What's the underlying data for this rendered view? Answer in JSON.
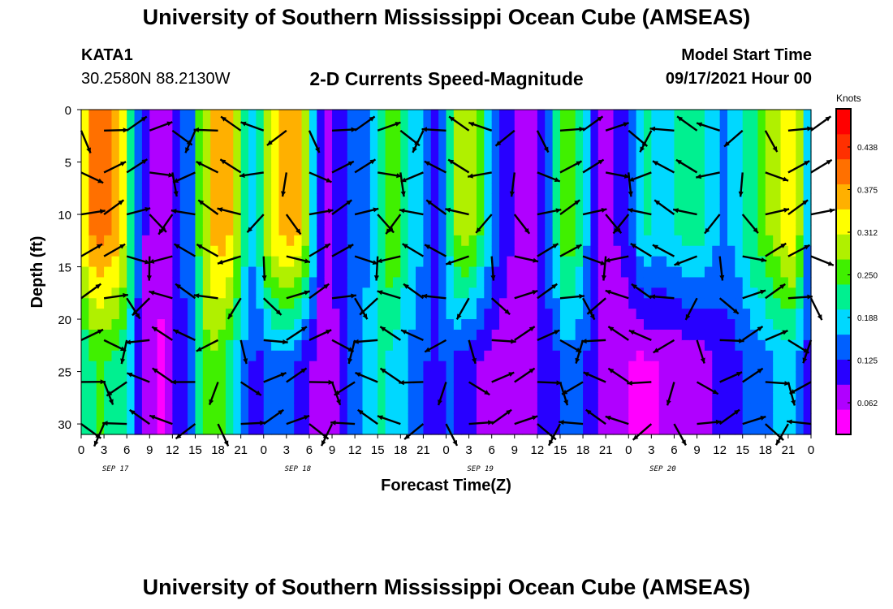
{
  "header": {
    "title": "University of Southern Mississippi Ocean Cube (AMSEAS)",
    "station": "KATA1",
    "coords": "30.2580N  88.2130W",
    "subtitle": "2-D Currents Speed-Magnitude",
    "start_label": "Model Start Time",
    "start_value": "09/17/2021 Hour 00"
  },
  "footer": {
    "title": "University of Southern Mississippi Ocean Cube (AMSEAS)"
  },
  "chart_data": {
    "type": "heatmap",
    "title": "2-D Currents Speed-Magnitude",
    "xlabel": "Forecast Time(Z)",
    "ylabel": "Depth (ft)",
    "x_ticks": [
      "0",
      "3",
      "6",
      "9",
      "12",
      "15",
      "18",
      "21",
      "0",
      "3",
      "6",
      "9",
      "12",
      "15",
      "18",
      "21",
      "0",
      "3",
      "6",
      "9",
      "12",
      "15",
      "18",
      "21",
      "0",
      "3",
      "6",
      "9",
      "12",
      "15",
      "18",
      "21",
      "0"
    ],
    "date_labels": [
      "SEP 17",
      "SEP 18",
      "SEP 19",
      "SEP 20"
    ],
    "x_range_hours": [
      0,
      96
    ],
    "y_ticks": [
      0,
      5,
      10,
      15,
      20,
      25,
      30
    ],
    "ylim": [
      0,
      31
    ],
    "y_inverted": true,
    "colorbar": {
      "units": "Knots",
      "ticks": [
        "0.438",
        "0.375",
        "0.312",
        "0.250",
        "0.188",
        "0.125",
        "0.062"
      ],
      "colors": [
        "#ff00ff",
        "#b000ff",
        "#2800ff",
        "#0060ff",
        "#00d8ff",
        "#00f090",
        "#40f000",
        "#b0f000",
        "#ffff00",
        "#ffb000",
        "#ff7000",
        "#ff3000",
        "#ff0000"
      ]
    },
    "speed_by_hour_depth_bands": [
      {
        "depth_ft": [
          0,
          20
        ],
        "hours": [
          [
            0,
            0.3
          ],
          [
            1,
            0.38
          ],
          [
            3,
            0.4
          ],
          [
            5,
            0.36
          ],
          [
            6,
            0.28
          ],
          [
            7,
            0.16
          ],
          [
            8,
            0.09
          ],
          [
            10,
            0.04
          ],
          [
            12,
            0.06
          ],
          [
            13,
            0.14
          ],
          [
            14,
            0.1
          ],
          [
            15,
            0.2
          ],
          [
            17,
            0.34
          ],
          [
            19,
            0.38
          ],
          [
            21,
            0.26
          ],
          [
            22,
            0.15
          ],
          [
            23,
            0.18
          ],
          [
            25,
            0.33
          ],
          [
            28,
            0.38
          ],
          [
            30,
            0.26
          ],
          [
            31,
            0.12
          ],
          [
            32,
            0.06
          ],
          [
            34,
            0.09
          ],
          [
            35,
            0.14
          ],
          [
            37,
            0.13
          ],
          [
            39,
            0.2
          ],
          [
            41,
            0.28
          ],
          [
            43,
            0.2
          ],
          [
            45,
            0.15
          ],
          [
            47,
            0.1
          ],
          [
            48,
            0.18
          ],
          [
            50,
            0.3
          ],
          [
            52,
            0.26
          ],
          [
            54,
            0.15
          ],
          [
            56,
            0.09
          ],
          [
            58,
            0.06
          ],
          [
            60,
            0.05
          ],
          [
            62,
            0.18
          ],
          [
            64,
            0.27
          ],
          [
            66,
            0.2
          ],
          [
            67,
            0.12
          ],
          [
            69,
            0.06
          ],
          [
            72,
            0.1
          ],
          [
            74,
            0.2
          ],
          [
            76,
            0.17
          ],
          [
            78,
            0.19
          ],
          [
            80,
            0.21
          ],
          [
            82,
            0.2
          ],
          [
            84,
            0.15
          ],
          [
            86,
            0.16
          ],
          [
            88,
            0.22
          ],
          [
            90,
            0.26
          ],
          [
            92,
            0.31
          ],
          [
            94,
            0.34
          ],
          [
            95,
            0.2
          ],
          [
            96,
            0.12
          ]
        ]
      },
      {
        "depth_ft": [
          20,
          31
        ],
        "hours": [
          [
            0,
            0.18
          ],
          [
            2,
            0.24
          ],
          [
            4,
            0.22
          ],
          [
            6,
            0.2
          ],
          [
            7,
            0.14
          ],
          [
            8,
            0.07
          ],
          [
            10,
            0.03
          ],
          [
            12,
            0.05
          ],
          [
            13,
            0.12
          ],
          [
            14,
            0.1
          ],
          [
            15,
            0.18
          ],
          [
            17,
            0.28
          ],
          [
            19,
            0.22
          ],
          [
            21,
            0.16
          ],
          [
            23,
            0.1
          ],
          [
            25,
            0.14
          ],
          [
            28,
            0.12
          ],
          [
            30,
            0.08
          ],
          [
            32,
            0.05
          ],
          [
            34,
            0.08
          ],
          [
            35,
            0.14
          ],
          [
            37,
            0.15
          ],
          [
            39,
            0.2
          ],
          [
            41,
            0.18
          ],
          [
            43,
            0.15
          ],
          [
            45,
            0.12
          ],
          [
            47,
            0.1
          ],
          [
            48,
            0.13
          ],
          [
            50,
            0.1
          ],
          [
            52,
            0.08
          ],
          [
            54,
            0.06
          ],
          [
            56,
            0.05
          ],
          [
            58,
            0.04
          ],
          [
            60,
            0.07
          ],
          [
            62,
            0.1
          ],
          [
            64,
            0.14
          ],
          [
            66,
            0.12
          ],
          [
            67,
            0.1
          ],
          [
            69,
            0.05
          ],
          [
            72,
            0.04
          ],
          [
            74,
            0.03
          ],
          [
            76,
            0.04
          ],
          [
            78,
            0.04
          ],
          [
            80,
            0.05
          ],
          [
            82,
            0.06
          ],
          [
            84,
            0.09
          ],
          [
            86,
            0.1
          ],
          [
            88,
            0.13
          ],
          [
            90,
            0.14
          ],
          [
            92,
            0.16
          ],
          [
            94,
            0.17
          ],
          [
            95,
            0.11
          ],
          [
            96,
            0.1
          ]
        ]
      }
    ]
  }
}
